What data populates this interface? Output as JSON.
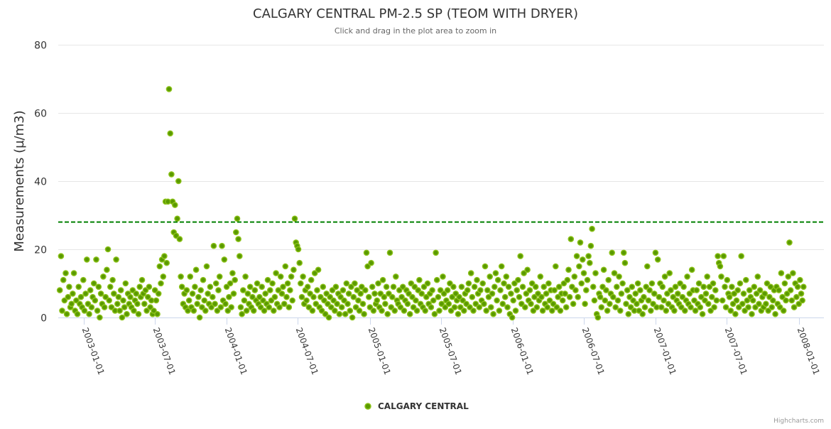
{
  "chart_data": {
    "type": "scatter",
    "title": "CALGARY CENTRAL PM-2.5 SP (TEOM WITH DRYER)",
    "subtitle": "Click and drag in the plot area to zoom in",
    "ylabel": "Measurements (µ/m3)",
    "xlabel": "",
    "ylim": [
      0,
      80
    ],
    "yticks": [
      "0",
      "20",
      "40",
      "60",
      "80"
    ],
    "xlim": [
      "2002-10-28",
      "2008-03-05"
    ],
    "xticks": [
      "2003-01-01",
      "2003-07-01",
      "2004-01-01",
      "2004-07-01",
      "2005-01-01",
      "2005-07-01",
      "2006-01-01",
      "2006-07-01",
      "2007-01-01",
      "2007-07-01",
      "2008-01-01"
    ],
    "grid": true,
    "legend_position": "bottom-center",
    "threshold": {
      "value": 28,
      "color": "#008000",
      "style": "dashed"
    },
    "series": [
      {
        "name": "CALGARY CENTRAL",
        "color": "#7cb500",
        "start_date": "2002-11-01",
        "step_days": 3,
        "values": [
          8,
          18,
          2,
          11,
          5,
          13,
          1,
          6,
          9,
          3,
          4,
          7,
          13,
          2,
          5,
          1,
          9,
          4,
          6,
          3,
          11,
          2,
          7,
          17,
          4,
          1,
          8,
          3,
          6,
          10,
          5,
          17,
          2,
          9,
          0,
          7,
          4,
          12,
          3,
          6,
          14,
          20,
          5,
          9,
          3,
          11,
          7,
          2,
          17,
          4,
          6,
          2,
          8,
          0,
          5,
          3,
          10,
          1,
          7,
          4,
          6,
          3,
          8,
          2,
          5,
          7,
          4,
          1,
          9,
          6,
          11,
          7,
          4,
          8,
          2,
          6,
          9,
          3,
          5,
          1,
          2,
          8,
          5,
          1,
          7,
          15,
          10,
          17,
          12,
          18,
          34,
          16,
          34,
          67,
          54,
          42,
          34,
          25,
          33,
          24,
          29,
          40,
          23,
          12,
          9,
          4,
          7,
          3,
          8,
          2,
          5,
          12,
          3,
          7,
          2,
          9,
          14,
          4,
          6,
          0,
          8,
          3,
          11,
          5,
          2,
          15,
          7,
          4,
          9,
          3,
          6,
          21,
          4,
          10,
          2,
          8,
          12,
          3,
          21,
          5,
          17,
          4,
          9,
          2,
          6,
          10,
          3,
          13,
          7,
          11,
          25,
          29,
          23,
          18,
          3,
          1,
          8,
          5,
          12,
          2,
          7,
          4,
          9,
          3,
          6,
          2,
          8,
          5,
          10,
          4,
          6,
          3,
          9,
          5,
          2,
          7,
          4,
          11,
          3,
          8,
          5,
          10,
          2,
          6,
          13,
          4,
          8,
          3,
          12,
          7,
          9,
          4,
          15,
          6,
          10,
          3,
          8,
          12,
          5,
          14,
          29,
          22,
          21,
          20,
          16,
          10,
          6,
          12,
          4,
          8,
          5,
          9,
          3,
          7,
          11,
          2,
          6,
          13,
          4,
          8,
          14,
          3,
          6,
          2,
          9,
          5,
          1,
          7,
          4,
          0,
          6,
          3,
          8,
          5,
          2,
          9,
          4,
          7,
          1,
          6,
          3,
          8,
          5,
          1,
          10,
          4,
          7,
          2,
          9,
          0,
          6,
          10,
          3,
          8,
          5,
          2,
          7,
          9,
          4,
          1,
          8,
          19,
          15,
          6,
          3,
          16,
          9,
          2,
          7,
          4,
          5,
          10,
          3,
          7,
          2,
          11,
          6,
          4,
          9,
          1,
          7,
          19,
          3,
          6,
          9,
          2,
          12,
          5,
          4,
          8,
          3,
          6,
          9,
          2,
          5,
          8,
          4,
          7,
          1,
          10,
          6,
          3,
          9,
          5,
          2,
          8,
          11,
          4,
          7,
          3,
          9,
          2,
          6,
          10,
          4,
          7,
          3,
          8,
          5,
          1,
          19,
          11,
          6,
          2,
          8,
          4,
          12,
          7,
          3,
          5,
          8,
          4,
          10,
          2,
          6,
          9,
          3,
          7,
          5,
          1,
          6,
          3,
          9,
          5,
          2,
          7,
          4,
          8,
          10,
          3,
          13,
          6,
          2,
          9,
          4,
          11,
          7,
          3,
          8,
          5,
          10,
          4,
          15,
          2,
          8,
          6,
          12,
          3,
          7,
          1,
          9,
          13,
          5,
          11,
          2,
          8,
          15,
          4,
          10,
          6,
          12,
          3,
          9,
          1,
          7,
          0,
          5,
          10,
          2,
          8,
          11,
          6,
          18,
          4,
          9,
          13,
          3,
          7,
          14,
          5,
          8,
          4,
          10,
          2,
          6,
          9,
          3,
          7,
          5,
          12,
          6,
          2,
          9,
          4,
          7,
          3,
          10,
          5,
          8,
          2,
          4,
          8,
          15,
          3,
          6,
          9,
          2,
          7,
          5,
          10,
          7,
          3,
          11,
          14,
          6,
          23,
          9,
          4,
          12,
          8,
          18,
          6,
          15,
          22,
          10,
          17,
          13,
          4,
          8,
          11,
          18,
          16,
          21,
          26,
          9,
          5,
          13,
          1,
          0,
          7,
          6,
          3,
          9,
          14,
          5,
          8,
          2,
          11,
          4,
          7,
          19,
          6,
          13,
          3,
          9,
          5,
          12,
          2,
          7,
          10,
          19,
          16,
          4,
          8,
          1,
          6,
          3,
          9,
          5,
          2,
          7,
          4,
          10,
          2,
          8,
          5,
          1,
          6,
          3,
          9,
          15,
          5,
          8,
          2,
          10,
          4,
          7,
          19,
          3,
          17,
          6,
          10,
          3,
          9,
          5,
          12,
          2,
          7,
          4,
          13,
          8,
          3,
          6,
          2,
          9,
          5,
          7,
          4,
          10,
          3,
          6,
          9,
          2,
          5,
          12,
          4,
          7,
          3,
          14,
          8,
          5,
          2,
          8,
          4,
          10,
          3,
          6,
          1,
          9,
          5,
          7,
          12,
          4,
          9,
          2,
          6,
          10,
          3,
          8,
          5,
          18,
          16,
          15,
          12,
          5,
          18,
          9,
          3,
          11,
          7,
          6,
          2,
          9,
          4,
          7,
          1,
          5,
          8,
          3,
          10,
          18,
          4,
          7,
          2,
          11,
          5,
          3,
          8,
          6,
          1,
          5,
          9,
          3,
          7,
          12,
          4,
          8,
          2,
          6,
          3,
          7,
          4,
          10,
          2,
          6,
          9,
          3,
          5,
          8,
          1,
          9,
          4,
          8,
          3,
          13,
          6,
          2,
          10,
          5,
          7,
          12,
          22,
          8,
          5,
          13,
          3,
          10,
          6,
          9,
          4,
          11,
          7,
          5,
          9
        ]
      }
    ]
  },
  "credits": "Highcharts.com"
}
